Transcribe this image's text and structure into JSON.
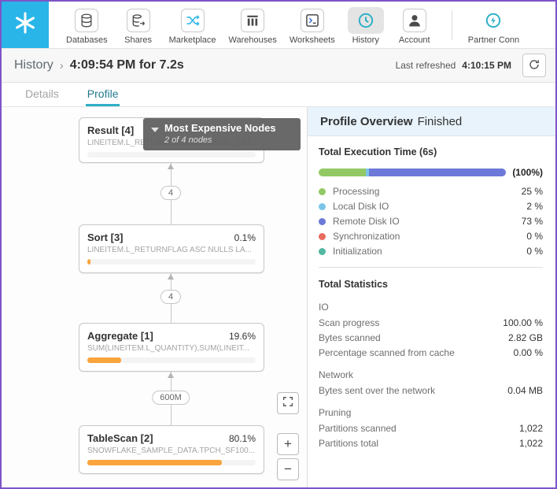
{
  "nav": {
    "items": [
      {
        "label": "Databases"
      },
      {
        "label": "Shares"
      },
      {
        "label": "Marketplace"
      },
      {
        "label": "Warehouses"
      },
      {
        "label": "Worksheets"
      },
      {
        "label": "History",
        "active": true
      },
      {
        "label": "Account"
      },
      {
        "label": "Partner Conn"
      }
    ]
  },
  "header": {
    "breadcrumb": "History",
    "separator": "›",
    "title": "4:09:54 PM for 7.2s",
    "last_refreshed_label": "Last refreshed",
    "last_refreshed_time": "4:10:15 PM"
  },
  "tabs": {
    "details": "Details",
    "profile": "Profile"
  },
  "dag": {
    "tooltip": {
      "title": "Most Expensive Nodes",
      "subtitle": "2 of 4 nodes"
    },
    "nodes": [
      {
        "title": "Result [4]",
        "pct": "",
        "subtitle": "LINEITEM.L_RETURNFLAG,LINEITEM.L_LIN...",
        "bar": 0
      },
      {
        "title": "Sort [3]",
        "pct": "0.1%",
        "subtitle": "LINEITEM.L_RETURNFLAG ASC NULLS LA...",
        "bar": 2
      },
      {
        "title": "Aggregate [1]",
        "pct": "19.6%",
        "subtitle": "SUM(LINEITEM.L_QUANTITY),SUM(LINEIT...",
        "bar": 20
      },
      {
        "title": "TableScan [2]",
        "pct": "80.1%",
        "subtitle": "SNOWFLAKE_SAMPLE_DATA.TPCH_SF100...",
        "bar": 80
      }
    ],
    "edges": [
      {
        "label": "4"
      },
      {
        "label": "4"
      },
      {
        "label": "600M"
      }
    ],
    "controls": {
      "zoom_in": "+",
      "zoom_out": "−"
    }
  },
  "profile": {
    "title": "Profile Overview",
    "status": "Finished",
    "execution": {
      "label": "Total Execution Time (6s)",
      "total_label": "(100%)",
      "segments": [
        {
          "color": "#93c964",
          "width": 25
        },
        {
          "color": "#7cc5e8",
          "width": 2
        },
        {
          "color": "#6c79d8",
          "width": 73
        }
      ],
      "legend": [
        {
          "label": "Processing",
          "value": "25 %",
          "color": "#93c964"
        },
        {
          "label": "Local Disk IO",
          "value": "2 %",
          "color": "#7cc5e8"
        },
        {
          "label": "Remote Disk IO",
          "value": "73 %",
          "color": "#6c79d8"
        },
        {
          "label": "Synchronization",
          "value": "0 %",
          "color": "#e86c60"
        },
        {
          "label": "Initialization",
          "value": "0 %",
          "color": "#52b7a0"
        }
      ]
    },
    "stats": {
      "title": "Total Statistics",
      "groups": [
        {
          "name": "IO",
          "rows": [
            {
              "label": "Scan progress",
              "value": "100.00 %"
            },
            {
              "label": "Bytes scanned",
              "value": "2.82 GB"
            },
            {
              "label": "Percentage scanned from cache",
              "value": "0.00 %"
            }
          ]
        },
        {
          "name": "Network",
          "rows": [
            {
              "label": "Bytes sent over the network",
              "value": "0.04 MB"
            }
          ]
        },
        {
          "name": "Pruning",
          "rows": [
            {
              "label": "Partitions scanned",
              "value": "1,022"
            },
            {
              "label": "Partitions total",
              "value": "1,022"
            }
          ]
        }
      ]
    }
  }
}
